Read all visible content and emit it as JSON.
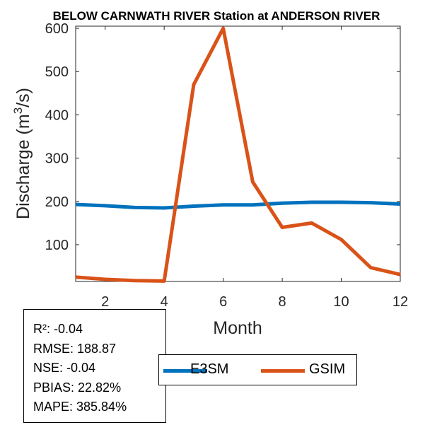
{
  "chart_data": {
    "type": "line",
    "title": "BELOW CARNWATH RIVER  Station at  ANDERSON RIVER",
    "xlabel": "Month",
    "ylabel_base": "Discharge (m",
    "ylabel_sup": "3",
    "ylabel_end": "/s)",
    "xlim": [
      1,
      12
    ],
    "ylim": [
      15,
      605
    ],
    "xticks": [
      2,
      4,
      6,
      8,
      10,
      12
    ],
    "yticks": [
      100,
      200,
      300,
      400,
      500,
      600
    ],
    "x": [
      1,
      2,
      3,
      4,
      5,
      6,
      7,
      8,
      9,
      10,
      11,
      12
    ],
    "series": [
      {
        "name": "E3SM",
        "color": "#0072BD",
        "values": [
          193,
          190,
          186,
          185,
          189,
          192,
          192,
          196,
          198,
          198,
          197,
          194
        ]
      },
      {
        "name": "GSIM",
        "color": "#D95319",
        "values": [
          25,
          20,
          17,
          16,
          470,
          600,
          245,
          140,
          150,
          112,
          47,
          31
        ]
      }
    ],
    "grid": false,
    "legend_placement": "bottom"
  },
  "stats": {
    "r2": "R²: -0.04",
    "rmse": "RMSE: 188.87",
    "nse": "NSE: -0.04",
    "pbias": "PBIAS: 22.82%",
    "mape": "MAPE: 385.84%"
  }
}
